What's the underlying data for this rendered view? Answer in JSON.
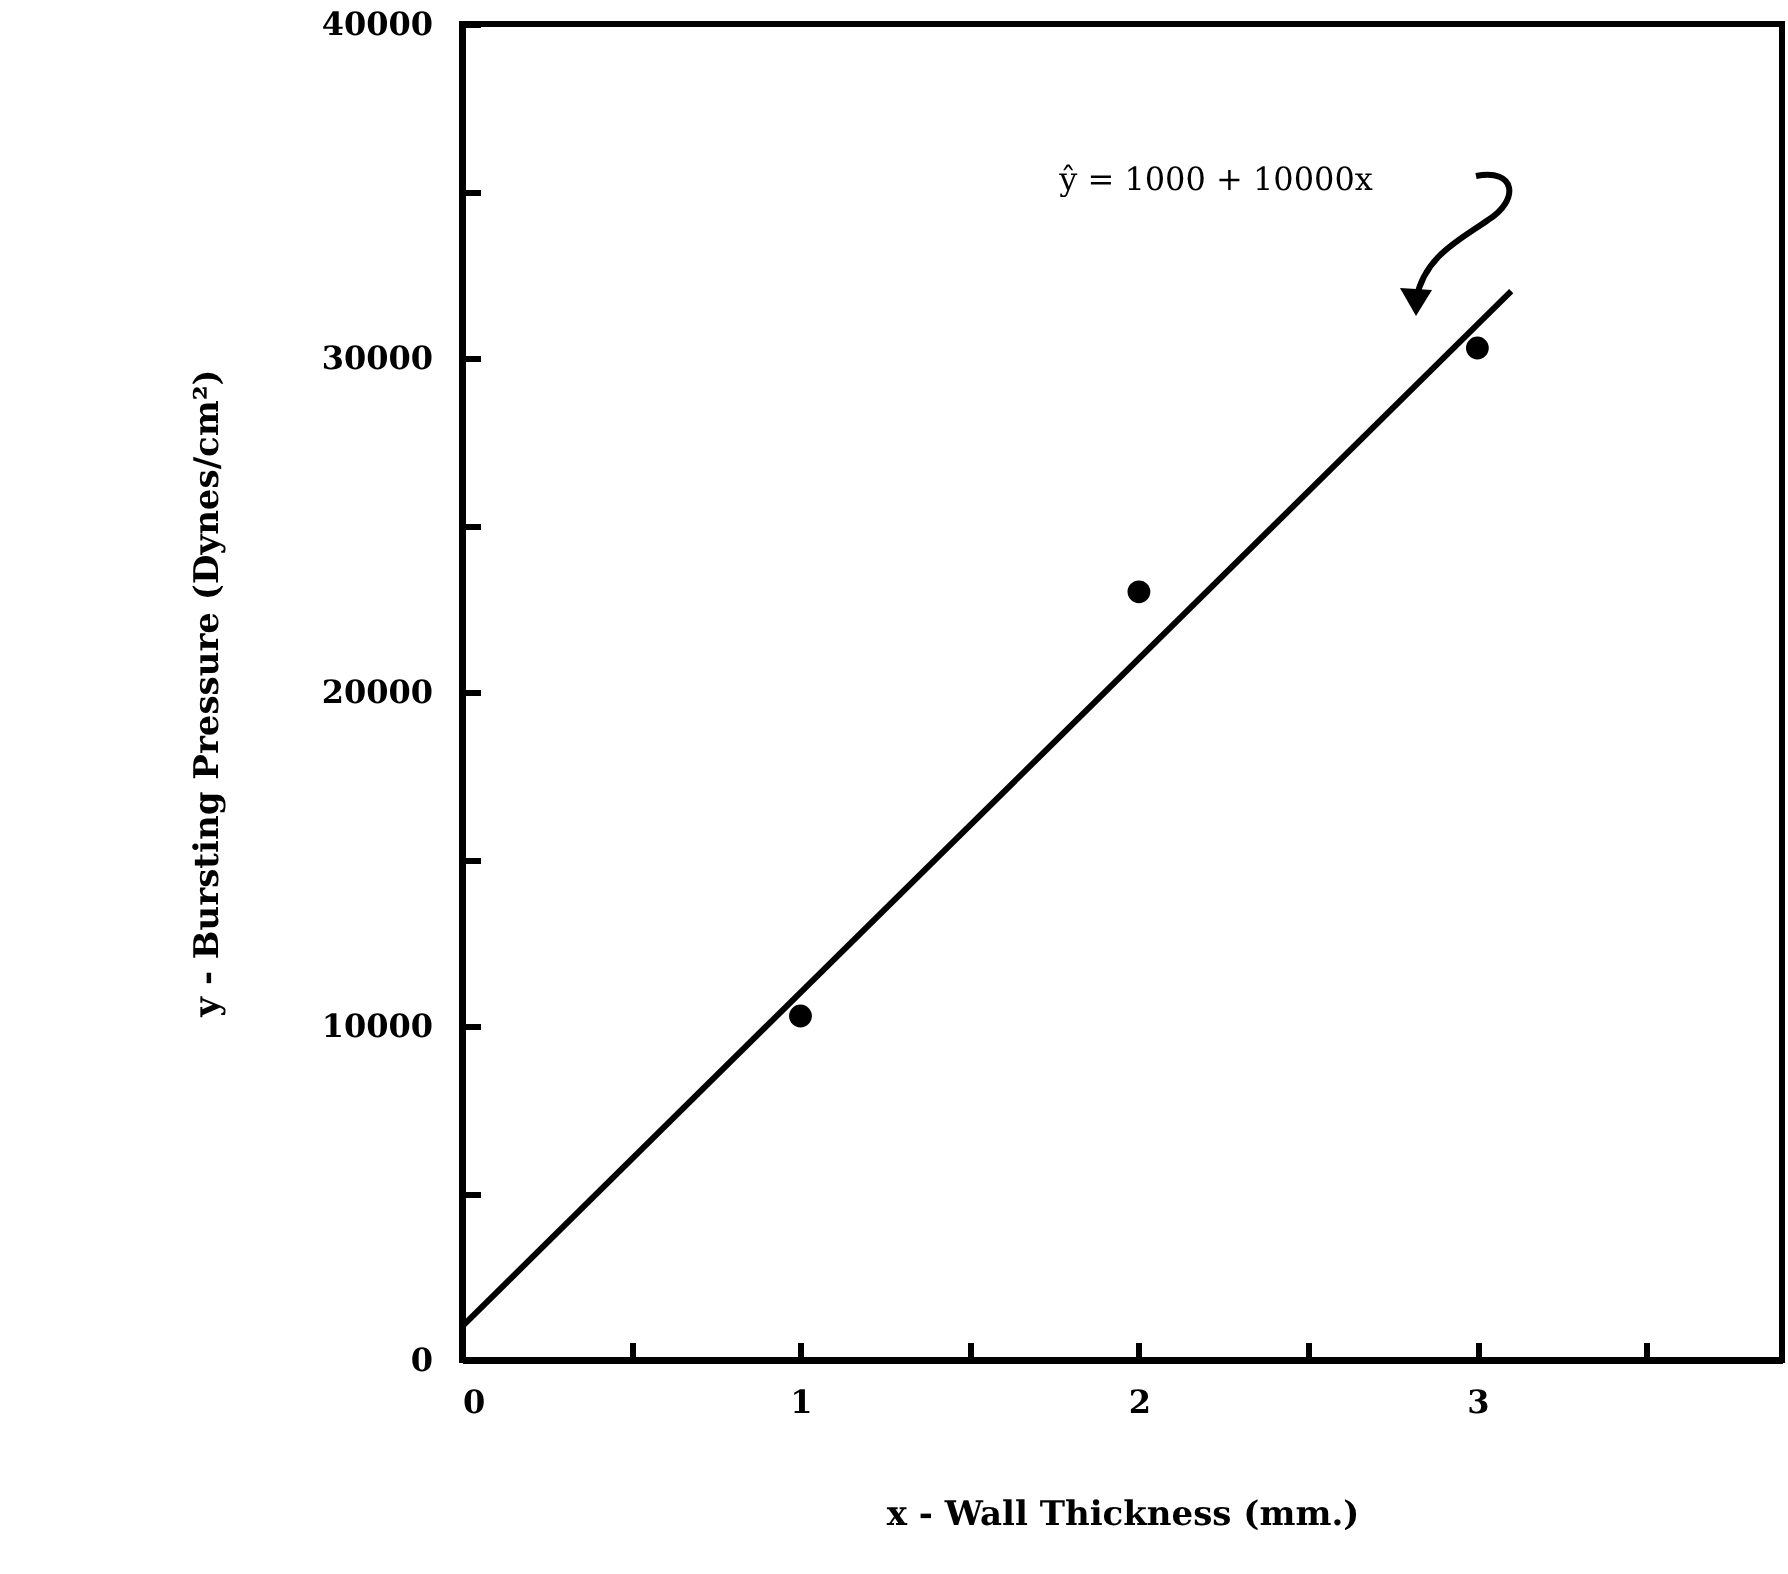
{
  "chart_data": {
    "type": "scatter",
    "xlabel": "x - Wall Thickness (mm.)",
    "ylabel": "y - Bursting Pressure (Dynes/cm²)",
    "x": [
      1,
      2,
      3
    ],
    "series": [
      {
        "color": "#000000",
        "marker": "circle",
        "values": [
          10300,
          23000,
          30300
        ]
      },
      {
        "type": "line",
        "color": "#000000",
        "x": [
          0,
          3.1
        ],
        "values": [
          1000,
          32000
        ],
        "line_style": "solid"
      }
    ],
    "xlim": [
      0,
      3.9
    ],
    "xticks": [
      0,
      {
        "value": 0.5,
        "label": null
      },
      1,
      {
        "value": 1.5,
        "label": null
      },
      2,
      {
        "value": 2.5,
        "label": null
      },
      3,
      {
        "value": 3.5,
        "label": null
      }
    ],
    "ylim": [
      0,
      40000
    ],
    "yticks": [
      0,
      {
        "value": 5000,
        "label": null
      },
      10000,
      {
        "value": 15000,
        "label": null
      },
      20000,
      {
        "value": 25000,
        "label": null
      },
      30000,
      {
        "value": 35000,
        "label": null
      },
      40000
    ],
    "annotations": [
      "ŷ = 1000 + 10000x"
    ],
    "grid": false
  }
}
